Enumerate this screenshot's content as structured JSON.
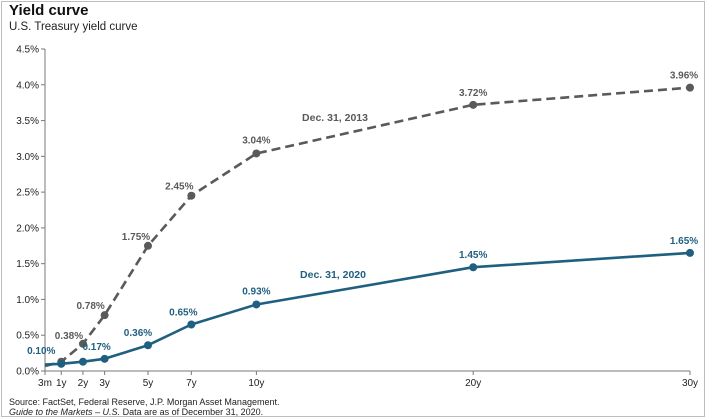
{
  "chart_data": {
    "type": "line",
    "title": "Yield curve",
    "subtitle": "U.S. Treasury yield curve",
    "xlabel": "",
    "ylabel": "",
    "categories": [
      "3m",
      "1y",
      "2y",
      "3y",
      "5y",
      "7y",
      "10y",
      "20y",
      "30y"
    ],
    "x_years": [
      0.25,
      1,
      2,
      3,
      5,
      7,
      10,
      20,
      30
    ],
    "ylim": [
      0,
      4.5
    ],
    "yticks": [
      "0.0%",
      "0.5%",
      "1.0%",
      "1.5%",
      "2.0%",
      "2.5%",
      "3.0%",
      "3.5%",
      "4.0%",
      "4.5%"
    ],
    "grid": false,
    "series": [
      {
        "name": "Dec. 31, 2013",
        "style": "dashed",
        "color": "#5a5a5a",
        "values": [
          0.07,
          0.13,
          0.38,
          0.78,
          1.75,
          2.45,
          3.04,
          3.72,
          3.96
        ],
        "labels": [
          "",
          "",
          "0.38%",
          "0.78%",
          "1.75%",
          "2.45%",
          "3.04%",
          "3.72%",
          "3.96%"
        ]
      },
      {
        "name": "Dec. 31, 2020",
        "style": "solid",
        "color": "#1f5f80",
        "values": [
          0.09,
          0.1,
          0.13,
          0.17,
          0.36,
          0.65,
          0.93,
          1.45,
          1.65
        ],
        "labels": [
          "",
          "0.10%",
          "",
          "0.17%",
          "0.36%",
          "0.65%",
          "0.93%",
          "1.45%",
          "1.65%"
        ]
      }
    ]
  },
  "source": {
    "line1": "Source: FactSet, Federal Reserve, J.P. Morgan Asset Management.",
    "line2_italic": "Guide to the Markets – U.S.",
    "line2_rest": " Data are as of December 31, 2020."
  }
}
